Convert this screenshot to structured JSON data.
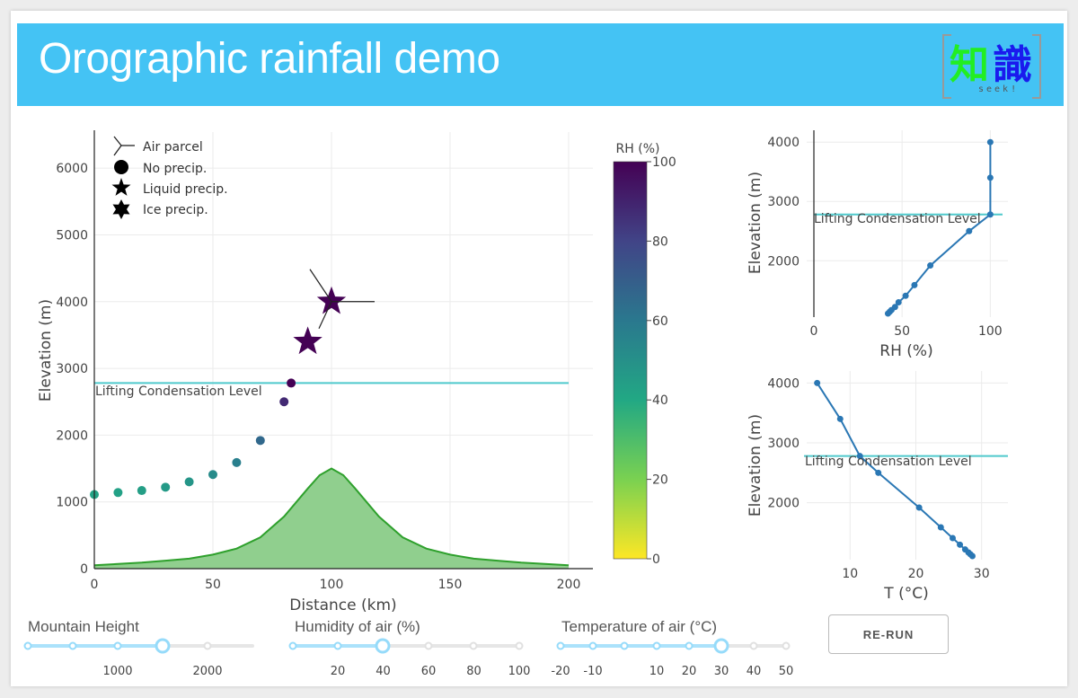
{
  "header": {
    "title": "Orographic rainfall demo",
    "logo": {
      "char1": "知",
      "char2": "識",
      "sub": "seek!"
    }
  },
  "colors": {
    "banner": "#44c3f4",
    "lcl_line": "#4fc9cc",
    "mountain_fill": "#90cf8e",
    "mountain_line": "#2ea02c",
    "profile_line": "#2a77b4"
  },
  "main_plot": {
    "legend": {
      "air_parcel": "Air parcel",
      "no_precip": "No precip.",
      "liquid_precip": "Liquid precip.",
      "ice_precip": "Ice precip."
    },
    "lcl_label": "Lifting Condensation Level",
    "xlabel": "Distance (km)",
    "ylabel": "Elevation (m)",
    "x_ticks": [
      "0",
      "50",
      "100",
      "150",
      "200"
    ],
    "y_ticks": [
      "0",
      "1000",
      "2000",
      "3000",
      "4000",
      "5000",
      "6000"
    ],
    "colorbar": {
      "title": "RH (%)",
      "ticks": [
        "0",
        "20",
        "40",
        "60",
        "80",
        "100"
      ]
    }
  },
  "rh_plot": {
    "lcl_label": "Lifting Condensation Level",
    "xlabel": "RH (%)",
    "ylabel": "Elevation (m)",
    "x_ticks": [
      "0",
      "50",
      "100"
    ],
    "y_ticks": [
      "2000",
      "3000",
      "4000"
    ]
  },
  "t_plot": {
    "lcl_label": "Lifting Condensation Level",
    "xlabel": "T (°C)",
    "ylabel": "Elevation (m)",
    "x_ticks": [
      "10",
      "20",
      "30"
    ],
    "y_ticks": [
      "2000",
      "3000",
      "4000"
    ]
  },
  "controls": {
    "mountain": {
      "label": "Mountain Height",
      "marks": [
        "1000",
        "2000"
      ],
      "value": 1500
    },
    "humidity": {
      "label": "Humidity of air (%)",
      "marks": [
        "20",
        "40",
        "60",
        "80",
        "100"
      ],
      "value": 40
    },
    "temperature": {
      "label": "Temperature of air (°C)",
      "marks": [
        "-20",
        "-10",
        "10",
        "20",
        "30",
        "40",
        "50"
      ],
      "value": 30
    },
    "rerun_label": "RE-RUN"
  },
  "chart_data": [
    {
      "type": "scatter",
      "title": "",
      "xlabel": "Distance (km)",
      "ylabel": "Elevation (m)",
      "xlim": [
        0,
        210
      ],
      "ylim": [
        0,
        6600
      ],
      "lcl": 2780,
      "series": [
        {
          "name": "No precip.",
          "x": [
            0,
            10,
            20,
            30,
            40,
            50,
            60,
            70,
            80,
            83
          ],
          "y": [
            1110,
            1140,
            1170,
            1220,
            1300,
            1410,
            1590,
            1920,
            2500,
            2780
          ],
          "rh": [
            42,
            43,
            44,
            46,
            48,
            52,
            57,
            66,
            88,
            100
          ]
        },
        {
          "name": "Liquid precip.",
          "x": [
            90
          ],
          "y": [
            3400
          ],
          "rh": [
            100
          ]
        },
        {
          "name": "Ice precip.",
          "x": [
            100
          ],
          "y": [
            4000
          ],
          "rh": [
            100
          ]
        }
      ],
      "terrain": {
        "x": [
          0,
          10,
          20,
          30,
          40,
          50,
          60,
          70,
          80,
          90,
          95,
          100,
          105,
          110,
          120,
          130,
          140,
          150,
          160,
          170,
          180,
          190,
          200
        ],
        "y": [
          50,
          70,
          90,
          120,
          150,
          210,
          300,
          470,
          780,
          1200,
          1400,
          1500,
          1400,
          1200,
          780,
          470,
          300,
          210,
          150,
          120,
          90,
          70,
          50
        ]
      }
    },
    {
      "type": "line",
      "title": "",
      "xlabel": "RH (%)",
      "ylabel": "Elevation (m)",
      "xlim": [
        0,
        110
      ],
      "ylim": [
        1050,
        4200
      ],
      "lcl": 2780,
      "x": [
        42,
        43,
        44,
        46,
        48,
        52,
        57,
        66,
        88,
        100,
        100,
        100
      ],
      "y": [
        1110,
        1140,
        1170,
        1220,
        1300,
        1410,
        1590,
        1920,
        2500,
        2780,
        3400,
        4000
      ]
    },
    {
      "type": "line",
      "title": "",
      "xlabel": "T (°C)",
      "ylabel": "Elevation (m)",
      "xlim": [
        3,
        34
      ],
      "ylim": [
        1050,
        4200
      ],
      "lcl": 2780,
      "x": [
        28.6,
        28.3,
        28.0,
        27.5,
        26.7,
        25.6,
        23.8,
        20.5,
        14.3,
        11.5,
        8.5,
        5.0
      ],
      "y": [
        1110,
        1140,
        1170,
        1220,
        1300,
        1410,
        1590,
        1920,
        2500,
        2780,
        3400,
        4000
      ]
    }
  ]
}
